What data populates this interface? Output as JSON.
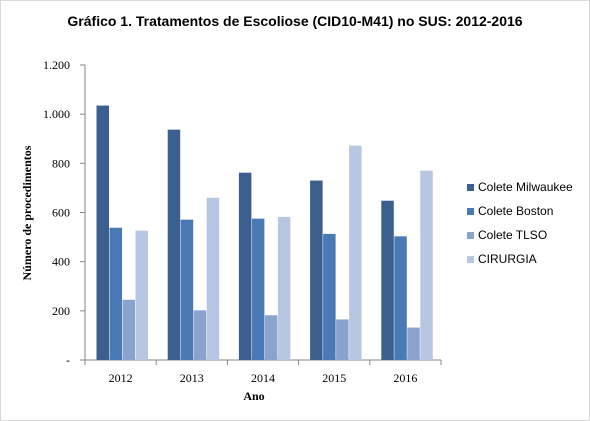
{
  "chart_data": {
    "type": "bar",
    "title": "Gráfico 1. Tratamentos de Escoliose (CID10-M41) no SUS: 2012-2016",
    "xlabel": "Ano",
    "ylabel": "Número de procedimentos",
    "categories": [
      "2012",
      "2013",
      "2014",
      "2015",
      "2016"
    ],
    "ylim": [
      0,
      1200
    ],
    "yticks": [
      0,
      200,
      400,
      600,
      800,
      1000,
      1200
    ],
    "ytick_labels": [
      "-",
      "200",
      "400",
      "600",
      "800",
      "1.000",
      "1.200"
    ],
    "grid": false,
    "legend_position": "right",
    "series": [
      {
        "name": "Colete Milwaukee",
        "color": "#3b5f8f",
        "values": [
          1035,
          937,
          762,
          730,
          648
        ]
      },
      {
        "name": "Colete Boston",
        "color": "#4a7ab6",
        "values": [
          538,
          571,
          575,
          513,
          503
        ]
      },
      {
        "name": "Colete TLSO",
        "color": "#8aa3cd",
        "values": [
          245,
          202,
          182,
          165,
          132
        ]
      },
      {
        "name": "CIRURGIA",
        "color": "#b7c6e1",
        "values": [
          526,
          660,
          582,
          872,
          770
        ]
      }
    ]
  }
}
